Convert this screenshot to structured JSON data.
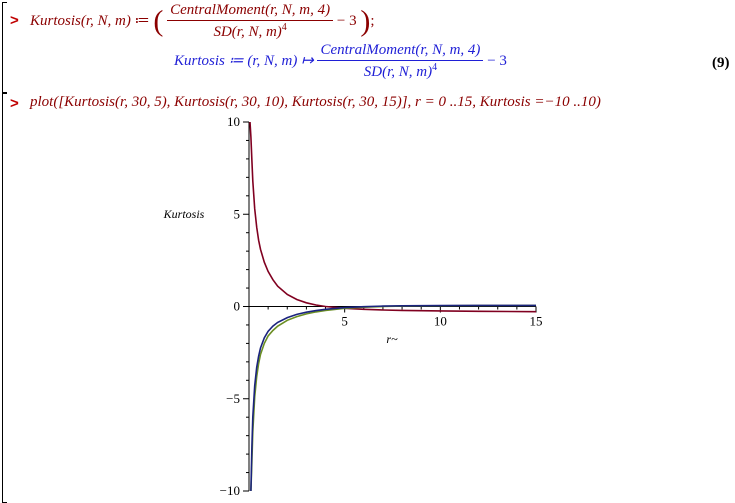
{
  "worksheet": {
    "input1": {
      "prompt": ">",
      "lhs": "Kurtosis(r, N, m)",
      "assign": " ≔ ",
      "open_paren": "(",
      "num": "CentralMoment(r, N, m, 4)",
      "den_base": "SD(r, N, m)",
      "den_exp": "4",
      "tail": " − 3",
      "close_paren": ")",
      "end": ";"
    },
    "output1": {
      "lhs": "Kurtosis ≔ (r, N, m) ↦ ",
      "num": "CentralMoment(r, N, m, 4)",
      "den_base": "SD(r, N, m)",
      "den_exp": "4",
      "tail": " − 3",
      "label": "(9)"
    },
    "input2": {
      "prompt": ">",
      "command": "plot([Kurtosis(r, 30, 5), Kurtosis(r, 30, 10), Kurtosis(r, 30, 15)], r = 0 ..15, Kurtosis =−10 ..10)"
    }
  },
  "chart_data": {
    "type": "line",
    "xlabel": "r~",
    "ylabel": "Kurtosis",
    "xlim": [
      0,
      15
    ],
    "ylim": [
      -10,
      10
    ],
    "xticks": [
      5,
      10,
      15
    ],
    "yticks": [
      -10,
      -5,
      0,
      5,
      10
    ],
    "grid": false,
    "colors": {
      "kurtosis_m5": "#800020",
      "kurtosis_m10": "#6b8e23",
      "kurtosis_m15": "#1a237e"
    },
    "series": [
      {
        "key": "kurtosis_m5",
        "x": [
          0.05,
          0.1,
          0.15,
          0.2,
          0.3,
          0.4,
          0.5,
          0.6,
          0.8,
          1.0,
          1.25,
          1.5,
          2.0,
          2.5,
          3.0,
          3.5,
          4.0,
          5.0,
          6.0,
          7.0,
          8.0,
          10.0,
          12.0,
          15.0
        ],
        "y": [
          10.0,
          9.2,
          7.9,
          6.8,
          5.3,
          4.3,
          3.6,
          3.1,
          2.4,
          1.9,
          1.45,
          1.1,
          0.65,
          0.38,
          0.2,
          0.08,
          0.0,
          -0.1,
          -0.15,
          -0.19,
          -0.21,
          -0.24,
          -0.26,
          -0.28
        ]
      },
      {
        "key": "kurtosis_m10",
        "x": [
          0.1,
          0.15,
          0.2,
          0.3,
          0.4,
          0.5,
          0.6,
          0.8,
          1.0,
          1.25,
          1.5,
          2.0,
          2.5,
          3.0,
          3.5,
          4.0,
          5.0,
          6.0,
          7.0,
          8.0,
          10.0,
          12.0,
          15.0
        ],
        "y": [
          -10.0,
          -8.4,
          -6.8,
          -4.9,
          -3.8,
          -3.1,
          -2.6,
          -2.0,
          -1.6,
          -1.3,
          -1.07,
          -0.75,
          -0.55,
          -0.4,
          -0.29,
          -0.21,
          -0.1,
          -0.04,
          0.0,
          0.02,
          0.04,
          0.05,
          0.06
        ]
      },
      {
        "key": "kurtosis_m15",
        "x": [
          0.1,
          0.15,
          0.2,
          0.3,
          0.4,
          0.5,
          0.6,
          0.8,
          1.0,
          1.25,
          1.5,
          2.0,
          2.5,
          3.0,
          3.5,
          4.0,
          5.0,
          6.0,
          7.0,
          8.0,
          10.0,
          12.0,
          15.0
        ],
        "y": [
          -10.0,
          -7.6,
          -6.0,
          -4.3,
          -3.3,
          -2.7,
          -2.25,
          -1.7,
          -1.35,
          -1.06,
          -0.86,
          -0.6,
          -0.43,
          -0.31,
          -0.22,
          -0.15,
          -0.06,
          -0.01,
          0.02,
          0.04,
          0.05,
          0.06,
          0.06
        ]
      }
    ]
  }
}
